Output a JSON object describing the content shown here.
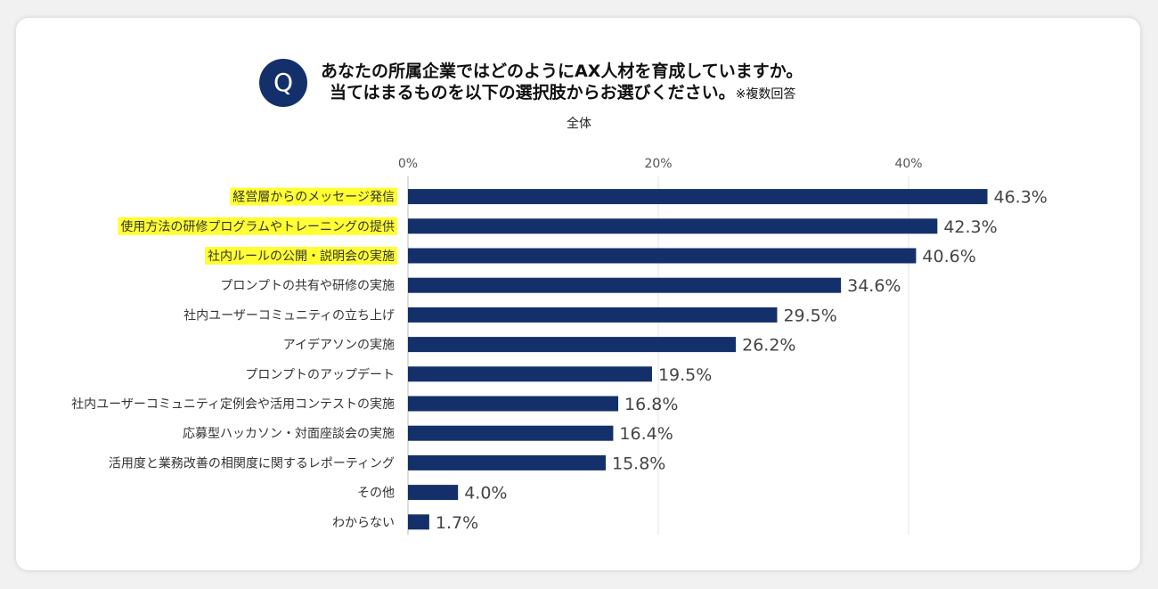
{
  "question": {
    "badge": "Q",
    "title_line1": "あなたの所属企業ではどのようにAX人材を育成していますか。",
    "title_line2": "当てはまるものを以下の選択肢からお選びください。",
    "note": "※複数回答"
  },
  "chart_data": {
    "type": "bar",
    "orientation": "horizontal",
    "title": "全体",
    "categories": [
      "経営層からのメッセージ発信",
      "使用方法の研修プログラムやトレーニングの提供",
      "社内ルールの公開・説明会の実施",
      "プロンプトの共有や研修の実施",
      "社内ユーザーコミュニティの立ち上げ",
      "アイデアソンの実施",
      "プロンプトのアップデート",
      "社内ユーザーコミュニティ定例会や活用コンテストの実施",
      "応募型ハッカソン・対面座談会の実施",
      "活用度と業務改善の相関度に関するレポーティング",
      "その他",
      "わからない"
    ],
    "values": [
      46.3,
      42.3,
      40.6,
      34.6,
      29.5,
      26.2,
      19.5,
      16.8,
      16.4,
      15.8,
      4.0,
      1.7
    ],
    "value_labels": [
      "46.3%",
      "42.3%",
      "40.6%",
      "34.6%",
      "29.5%",
      "26.2%",
      "19.5%",
      "16.8%",
      "16.4%",
      "15.8%",
      "4.0%",
      "1.7%"
    ],
    "highlighted": [
      0,
      1,
      2
    ],
    "ticks": [
      0,
      20,
      40
    ],
    "tick_labels": [
      "0%",
      "20%",
      "40%"
    ],
    "xlim": [
      0,
      50
    ],
    "grid": true,
    "bar_color": "#14306a",
    "highlight_color": "#ffff33"
  }
}
